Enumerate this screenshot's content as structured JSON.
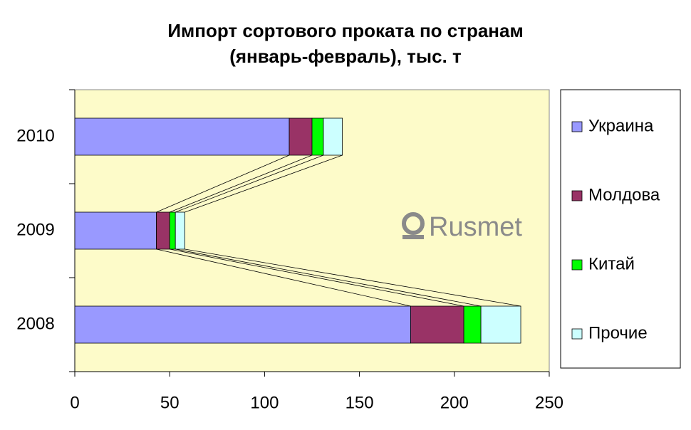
{
  "chart_data": {
    "type": "stacked_barh",
    "title": [
      "Импорт сортового проката по странам",
      "(январь-февраль), тыс. т"
    ],
    "watermark": "Rusmet",
    "categories": [
      "2008",
      "2009",
      "2010"
    ],
    "series": [
      {
        "name": "Украина",
        "color": "#9999ff",
        "values": [
          177,
          43,
          113
        ]
      },
      {
        "name": "Молдова",
        "color": "#993366",
        "values": [
          28,
          7,
          12
        ]
      },
      {
        "name": "Китай",
        "color": "#00ff00",
        "values": [
          9,
          3,
          6
        ]
      },
      {
        "name": "Прочие",
        "color": "#ccffff",
        "values": [
          21,
          5,
          10
        ]
      }
    ],
    "xlim": [
      0,
      250
    ],
    "xticks": [
      0,
      50,
      100,
      150,
      200,
      250
    ],
    "series_lines": true,
    "legend": "right"
  }
}
